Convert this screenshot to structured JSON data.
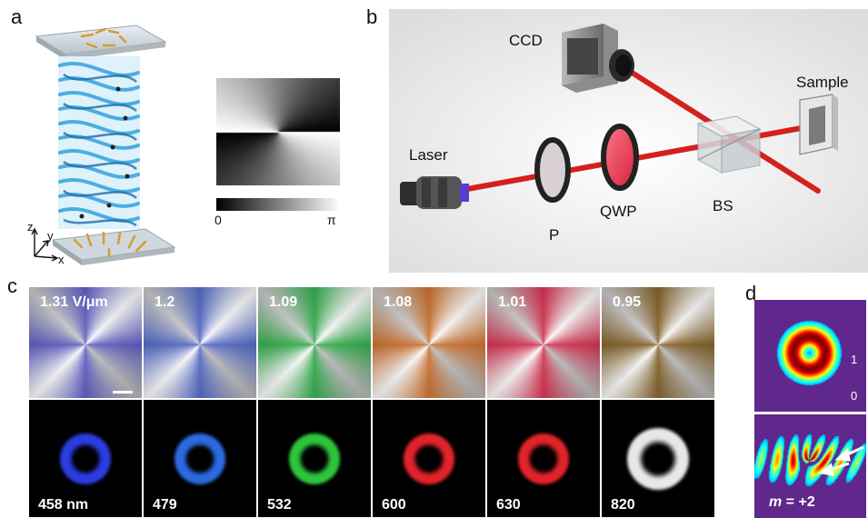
{
  "panels": {
    "a": "a",
    "b": "b",
    "c": "c",
    "d": "d"
  },
  "panel_a": {
    "axes": {
      "z": "z",
      "y": "y",
      "x": "x"
    },
    "phase_scale": {
      "min": "0",
      "max": "π"
    }
  },
  "panel_b": {
    "labels": {
      "ccd": "CCD",
      "sample": "Sample",
      "laser": "Laser",
      "p": "P",
      "qwp": "QWP",
      "bs": "BS"
    },
    "colors": {
      "beam": "#d4201e"
    }
  },
  "panel_c": {
    "fields": [
      "1.31 V/μm",
      "1.2",
      "1.09",
      "1.08",
      "1.01",
      "0.95"
    ],
    "wavelengths": [
      "458 nm",
      "479",
      "532",
      "600",
      "630",
      "820"
    ],
    "tile_colors": [
      "#5656c0",
      "#4a62c4",
      "#2aa844",
      "#c86a25",
      "#d22848",
      "#7d5a1e"
    ],
    "ring_colors": [
      "#2a3de0",
      "#2c6ae0",
      "#2ec43c",
      "#e0242a",
      "#e0242a",
      "#e8e8e8"
    ]
  },
  "panel_d": {
    "scale_max": "1",
    "scale_min": "0",
    "mode_prefix": "m",
    "mode_value": " = +2"
  }
}
